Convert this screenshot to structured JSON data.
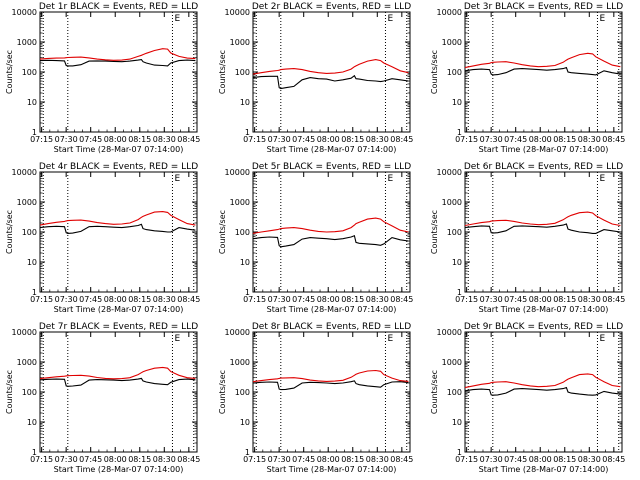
{
  "figure": {
    "background": "#ffffff",
    "colors": {
      "events": "#000000",
      "lld": "#e00000",
      "axes": "#000000"
    }
  },
  "chart_data": [
    {
      "type": "line",
      "title": "Det 1r BLACK = Events, RED = LLD",
      "xlabel": "Start Time (28-Mar-07 07:14:00)",
      "ylabel": "Counts/sec",
      "x_ticks": [
        "07:15",
        "07:30",
        "07:45",
        "08:00",
        "08:15",
        "08:30",
        "08:45"
      ],
      "x_range_min": [
        0,
        96
      ],
      "y_ticks": [
        "1",
        "10",
        "100",
        "1000",
        "10000"
      ],
      "ylim": [
        1,
        10000
      ],
      "y_scale": "log",
      "grid": false,
      "annotation": "E",
      "vertical_markers_min": [
        2,
        17,
        81,
        94
      ],
      "x_min": [
        0,
        5,
        10,
        15,
        16,
        17,
        20,
        25,
        30,
        35,
        40,
        45,
        50,
        55,
        60,
        62,
        63,
        65,
        70,
        75,
        78,
        80,
        85,
        90,
        95
      ],
      "series": [
        {
          "color": "events",
          "values": [
            240,
            245,
            240,
            235,
            165,
            160,
            160,
            175,
            230,
            235,
            230,
            225,
            220,
            230,
            250,
            260,
            220,
            200,
            170,
            165,
            160,
            200,
            240,
            250,
            240
          ]
        },
        {
          "color": "lld",
          "values": [
            270,
            285,
            290,
            295,
            300,
            305,
            310,
            315,
            295,
            270,
            255,
            245,
            250,
            270,
            330,
            360,
            380,
            420,
            520,
            600,
            580,
            430,
            330,
            290,
            280
          ]
        }
      ]
    },
    {
      "type": "line",
      "title": "Det 2r BLACK = Events, RED = LLD",
      "xlabel": "Start Time (28-Mar-07 07:14:00)",
      "ylabel": "Counts/sec",
      "x_ticks": [
        "07:15",
        "07:30",
        "07:45",
        "08:00",
        "08:15",
        "08:30",
        "08:45"
      ],
      "x_range_min": [
        0,
        96
      ],
      "y_ticks": [
        "1",
        "10",
        "100",
        "1000",
        "10000"
      ],
      "ylim": [
        1,
        10000
      ],
      "y_scale": "log",
      "grid": false,
      "annotation": "E",
      "vertical_markers_min": [
        2,
        17,
        81,
        94
      ],
      "x_min": [
        0,
        5,
        10,
        15,
        16,
        17,
        20,
        25,
        30,
        35,
        40,
        45,
        50,
        55,
        60,
        62,
        63,
        65,
        70,
        75,
        78,
        80,
        85,
        90,
        95
      ],
      "series": [
        {
          "color": "events",
          "values": [
            65,
            70,
            72,
            72,
            30,
            28,
            30,
            33,
            55,
            65,
            60,
            58,
            50,
            55,
            62,
            75,
            60,
            58,
            52,
            50,
            48,
            50,
            60,
            55,
            50
          ]
        },
        {
          "color": "lld",
          "values": [
            85,
            95,
            105,
            112,
            115,
            120,
            125,
            130,
            120,
            105,
            95,
            90,
            92,
            100,
            125,
            150,
            160,
            180,
            230,
            260,
            240,
            200,
            150,
            110,
            95
          ]
        }
      ]
    },
    {
      "type": "line",
      "title": "Det 3r BLACK = Events, RED = LLD",
      "xlabel": "Start Time (28-Mar-07 07:14:00)",
      "ylabel": "Counts/sec",
      "x_ticks": [
        "07:15",
        "07:30",
        "07:45",
        "08:00",
        "08:15",
        "08:30",
        "08:45"
      ],
      "x_range_min": [
        0,
        96
      ],
      "y_ticks": [
        "1",
        "10",
        "100",
        "1000",
        "10000"
      ],
      "ylim": [
        1,
        10000
      ],
      "y_scale": "log",
      "grid": false,
      "annotation": "E",
      "vertical_markers_min": [
        2,
        17,
        81,
        94
      ],
      "x_min": [
        0,
        5,
        10,
        15,
        16,
        17,
        20,
        25,
        30,
        35,
        40,
        45,
        50,
        55,
        60,
        62,
        63,
        65,
        70,
        75,
        78,
        80,
        85,
        90,
        95
      ],
      "series": [
        {
          "color": "events",
          "values": [
            110,
            120,
            125,
            120,
            85,
            80,
            82,
            95,
            125,
            130,
            125,
            120,
            115,
            120,
            130,
            140,
            100,
            95,
            90,
            85,
            82,
            80,
            110,
            95,
            85
          ]
        },
        {
          "color": "lld",
          "values": [
            140,
            160,
            180,
            195,
            205,
            210,
            215,
            220,
            200,
            175,
            160,
            150,
            155,
            165,
            210,
            250,
            270,
            300,
            380,
            420,
            400,
            320,
            230,
            170,
            150
          ]
        }
      ]
    },
    {
      "type": "line",
      "title": "Det 4r BLACK = Events, RED = LLD",
      "xlabel": "Start Time (28-Mar-07 07:14:00)",
      "ylabel": "Counts/sec",
      "x_ticks": [
        "07:15",
        "07:30",
        "07:45",
        "08:00",
        "08:15",
        "08:30",
        "08:45"
      ],
      "x_range_min": [
        0,
        96
      ],
      "y_ticks": [
        "1",
        "10",
        "100",
        "1000",
        "10000"
      ],
      "ylim": [
        1,
        10000
      ],
      "y_scale": "log",
      "grid": false,
      "annotation": "E",
      "vertical_markers_min": [
        2,
        17,
        81,
        94
      ],
      "x_min": [
        0,
        5,
        10,
        15,
        16,
        17,
        20,
        25,
        30,
        35,
        40,
        45,
        50,
        55,
        60,
        62,
        63,
        65,
        70,
        75,
        78,
        80,
        85,
        90,
        95
      ],
      "series": [
        {
          "color": "events",
          "values": [
            140,
            150,
            155,
            150,
            95,
            90,
            92,
            105,
            150,
            155,
            150,
            145,
            140,
            150,
            165,
            180,
            130,
            120,
            110,
            105,
            100,
            100,
            140,
            125,
            115
          ]
        },
        {
          "color": "lld",
          "values": [
            170,
            190,
            210,
            225,
            235,
            240,
            245,
            250,
            230,
            205,
            190,
            180,
            185,
            200,
            260,
            310,
            330,
            370,
            460,
            480,
            450,
            360,
            260,
            190,
            170
          ]
        }
      ]
    },
    {
      "type": "line",
      "title": "Det 5r BLACK = Events, RED = LLD",
      "xlabel": "Start Time (28-Mar-07 07:14:00)",
      "ylabel": "Counts/sec",
      "x_ticks": [
        "07:15",
        "07:30",
        "07:45",
        "08:00",
        "08:15",
        "08:30",
        "08:45"
      ],
      "x_range_min": [
        0,
        96
      ],
      "y_ticks": [
        "1",
        "10",
        "100",
        "1000",
        "10000"
      ],
      "ylim": [
        1,
        10000
      ],
      "y_scale": "log",
      "grid": false,
      "annotation": "E",
      "vertical_markers_min": [
        2,
        17,
        81,
        94
      ],
      "x_min": [
        0,
        5,
        10,
        15,
        16,
        17,
        20,
        25,
        30,
        35,
        40,
        45,
        50,
        55,
        60,
        62,
        63,
        65,
        70,
        75,
        78,
        80,
        85,
        90,
        95
      ],
      "series": [
        {
          "color": "events",
          "values": [
            60,
            65,
            68,
            66,
            35,
            32,
            34,
            38,
            58,
            65,
            62,
            60,
            56,
            60,
            68,
            75,
            45,
            42,
            40,
            38,
            36,
            40,
            65,
            55,
            50
          ]
        },
        {
          "color": "lld",
          "values": [
            90,
            100,
            110,
            120,
            125,
            130,
            135,
            140,
            130,
            115,
            105,
            100,
            102,
            110,
            140,
            170,
            190,
            210,
            270,
            290,
            270,
            220,
            160,
            115,
            100
          ]
        }
      ]
    },
    {
      "type": "line",
      "title": "Det 6r BLACK = Events, RED = LLD",
      "xlabel": "Start Time (28-Mar-07 07:14:00)",
      "ylabel": "Counts/sec",
      "x_ticks": [
        "07:15",
        "07:30",
        "07:45",
        "08:00",
        "08:15",
        "08:30",
        "08:45"
      ],
      "x_range_min": [
        0,
        96
      ],
      "y_ticks": [
        "1",
        "10",
        "100",
        "1000",
        "10000"
      ],
      "ylim": [
        1,
        10000
      ],
      "y_scale": "log",
      "grid": false,
      "annotation": "E",
      "vertical_markers_min": [
        2,
        17,
        81,
        94
      ],
      "x_min": [
        0,
        5,
        10,
        15,
        16,
        17,
        20,
        25,
        30,
        35,
        40,
        45,
        50,
        55,
        60,
        62,
        63,
        65,
        70,
        75,
        78,
        80,
        85,
        90,
        95
      ],
      "series": [
        {
          "color": "events",
          "values": [
            140,
            150,
            160,
            155,
            95,
            92,
            95,
            110,
            155,
            160,
            155,
            150,
            145,
            155,
            170,
            185,
            125,
            115,
            100,
            95,
            90,
            90,
            120,
            110,
            100
          ]
        },
        {
          "color": "lld",
          "values": [
            165,
            185,
            205,
            220,
            230,
            235,
            240,
            245,
            225,
            200,
            185,
            175,
            180,
            195,
            255,
            300,
            320,
            360,
            440,
            460,
            430,
            350,
            250,
            185,
            165
          ]
        }
      ]
    },
    {
      "type": "line",
      "title": "Det 7r BLACK = Events, RED = LLD",
      "xlabel": "Start Time (28-Mar-07 07:14:00)",
      "ylabel": "Counts/sec",
      "x_ticks": [
        "07:15",
        "07:30",
        "07:45",
        "08:00",
        "08:15",
        "08:30",
        "08:45"
      ],
      "x_range_min": [
        0,
        96
      ],
      "y_ticks": [
        "1",
        "10",
        "100",
        "1000",
        "10000"
      ],
      "ylim": [
        1,
        10000
      ],
      "y_scale": "log",
      "grid": false,
      "annotation": "E",
      "vertical_markers_min": [
        2,
        17,
        81,
        94
      ],
      "x_min": [
        0,
        5,
        10,
        15,
        16,
        17,
        20,
        25,
        30,
        35,
        40,
        45,
        50,
        55,
        60,
        62,
        63,
        65,
        70,
        75,
        78,
        80,
        85,
        90,
        95
      ],
      "series": [
        {
          "color": "events",
          "values": [
            255,
            265,
            270,
            265,
            160,
            155,
            158,
            170,
            250,
            260,
            255,
            250,
            240,
            250,
            270,
            285,
            235,
            215,
            190,
            180,
            175,
            210,
            260,
            270,
            255
          ]
        },
        {
          "color": "lld",
          "values": [
            280,
            300,
            320,
            335,
            345,
            350,
            355,
            360,
            340,
            305,
            285,
            275,
            280,
            300,
            380,
            440,
            470,
            520,
            620,
            660,
            620,
            480,
            360,
            300,
            285
          ]
        }
      ]
    },
    {
      "type": "line",
      "title": "Det 8r BLACK = Events, RED = LLD",
      "xlabel": "Start Time (28-Mar-07 07:14:00)",
      "ylabel": "Counts/sec",
      "x_ticks": [
        "07:15",
        "07:30",
        "07:45",
        "08:00",
        "08:15",
        "08:30",
        "08:45"
      ],
      "x_range_min": [
        0,
        96
      ],
      "y_ticks": [
        "1",
        "10",
        "100",
        "1000",
        "10000"
      ],
      "ylim": [
        1,
        10000
      ],
      "y_scale": "log",
      "grid": false,
      "annotation": "E",
      "vertical_markers_min": [
        2,
        17,
        81,
        94
      ],
      "x_min": [
        0,
        5,
        10,
        15,
        16,
        17,
        20,
        25,
        30,
        35,
        40,
        45,
        50,
        55,
        60,
        62,
        63,
        65,
        70,
        75,
        78,
        80,
        85,
        90,
        95
      ],
      "series": [
        {
          "color": "events",
          "values": [
            200,
            210,
            215,
            210,
            125,
            120,
            122,
            135,
            200,
            210,
            205,
            200,
            190,
            200,
            220,
            235,
            190,
            175,
            160,
            150,
            145,
            175,
            215,
            220,
            205
          ]
        },
        {
          "color": "lld",
          "values": [
            220,
            240,
            260,
            275,
            285,
            290,
            295,
            300,
            280,
            250,
            235,
            225,
            230,
            245,
            310,
            360,
            390,
            430,
            500,
            520,
            490,
            380,
            290,
            240,
            225
          ]
        }
      ]
    },
    {
      "type": "line",
      "title": "Det 9r BLACK = Events, RED = LLD",
      "xlabel": "Start Time (28-Mar-07 07:14:00)",
      "ylabel": "Counts/sec",
      "x_ticks": [
        "07:15",
        "07:30",
        "07:45",
        "08:00",
        "08:15",
        "08:30",
        "08:45"
      ],
      "x_range_min": [
        0,
        96
      ],
      "y_ticks": [
        "1",
        "10",
        "100",
        "1000",
        "10000"
      ],
      "ylim": [
        1,
        10000
      ],
      "y_scale": "log",
      "grid": false,
      "annotation": "E",
      "vertical_markers_min": [
        2,
        17,
        81,
        94
      ],
      "x_min": [
        0,
        5,
        10,
        15,
        16,
        17,
        20,
        25,
        30,
        35,
        40,
        45,
        50,
        55,
        60,
        62,
        63,
        65,
        70,
        75,
        78,
        80,
        85,
        90,
        95
      ],
      "series": [
        {
          "color": "events",
          "values": [
            110,
            120,
            125,
            120,
            80,
            78,
            80,
            92,
            125,
            130,
            125,
            120,
            115,
            120,
            130,
            140,
            100,
            92,
            85,
            80,
            78,
            80,
            105,
            92,
            85
          ]
        },
        {
          "color": "lld",
          "values": [
            140,
            160,
            180,
            195,
            205,
            210,
            215,
            220,
            200,
            175,
            160,
            150,
            155,
            165,
            210,
            250,
            270,
            300,
            380,
            400,
            380,
            310,
            220,
            165,
            150
          ]
        }
      ]
    }
  ]
}
